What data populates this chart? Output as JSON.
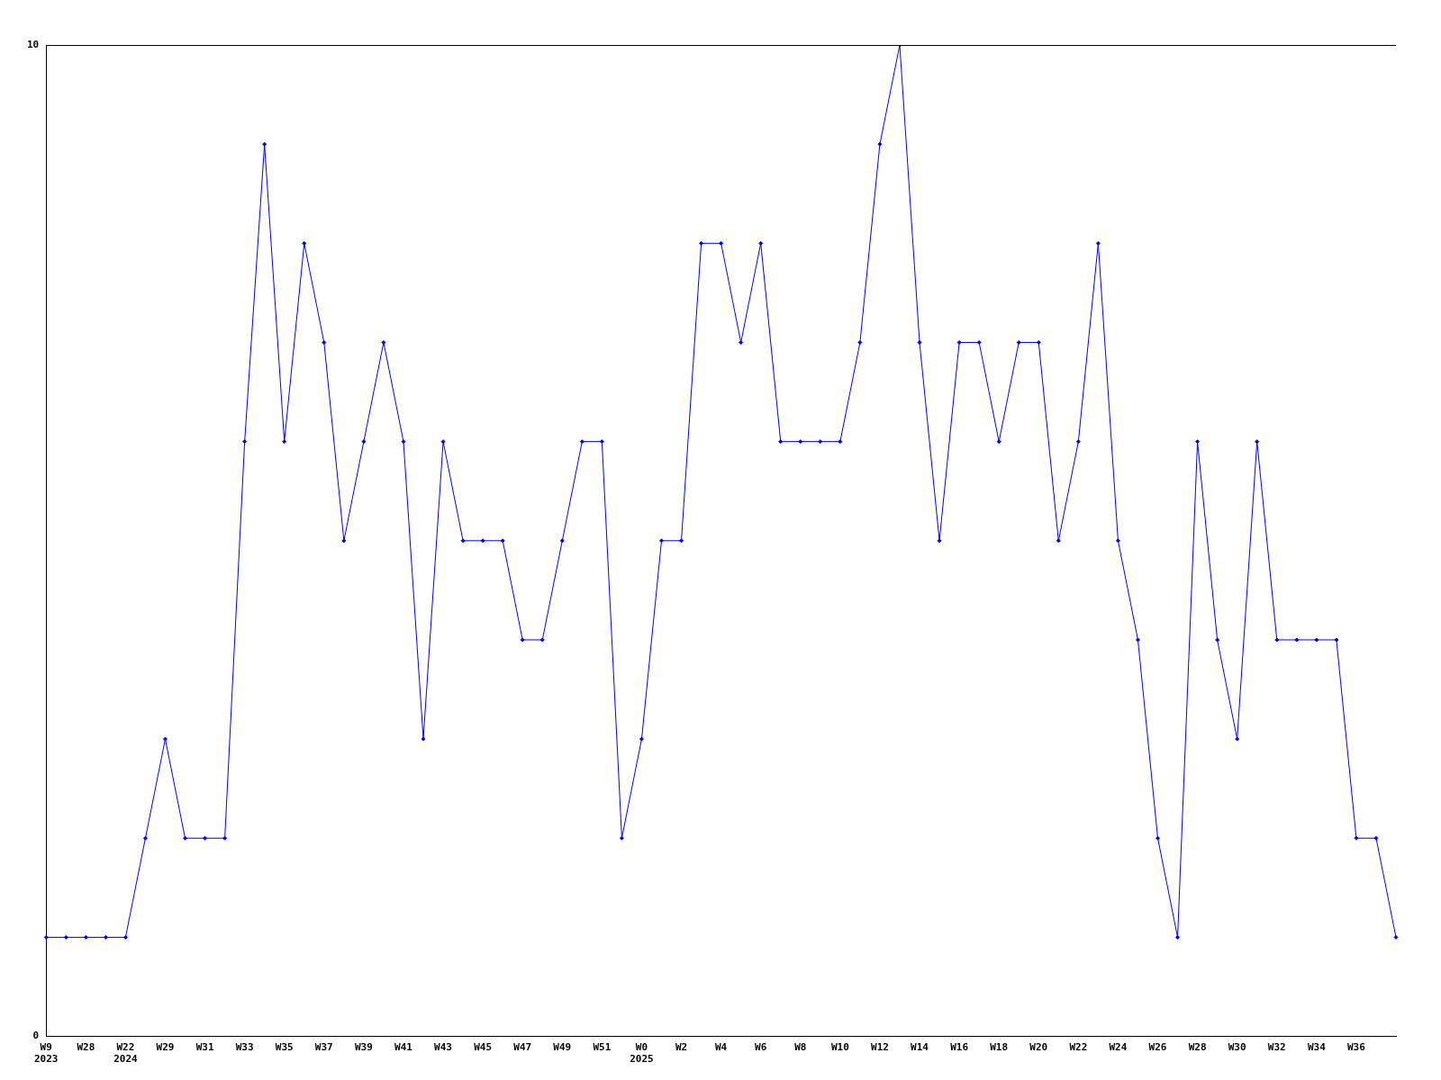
{
  "chart_data": {
    "type": "line",
    "categories": [
      "W9\n2023",
      null,
      "W28",
      null,
      "W22\n2024",
      null,
      "W29",
      null,
      "W31",
      null,
      "W33",
      null,
      "W35",
      null,
      "W37",
      null,
      "W39",
      null,
      "W41",
      null,
      "W43",
      null,
      "W45",
      null,
      "W47",
      null,
      "W49",
      null,
      "W51",
      null,
      "W0\n2025",
      null,
      "W2",
      null,
      "W4",
      null,
      "W6",
      null,
      "W8",
      null,
      "W10",
      null,
      "W12",
      null,
      "W14",
      null,
      "W16",
      null,
      "W18",
      null,
      "W20",
      null,
      "W22",
      null,
      "W24",
      null,
      "W26",
      null,
      "W28",
      null,
      "W30",
      null,
      "W32",
      null,
      "W34",
      null,
      "W36",
      null,
      null
    ],
    "series": [
      {
        "color": "#0000ff",
        "values": [
          1,
          1,
          1,
          1,
          1,
          2,
          3,
          2,
          2,
          2,
          6,
          9,
          6,
          8,
          7,
          5,
          6,
          7,
          6,
          3,
          6,
          5,
          5,
          5,
          4,
          4,
          5,
          6,
          6,
          2,
          3,
          5,
          5,
          8,
          8,
          7,
          8,
          6,
          6,
          6,
          6,
          7,
          9,
          10,
          7,
          5,
          7,
          7,
          6,
          7,
          7,
          5,
          6,
          8,
          5,
          4,
          2,
          1,
          6,
          4,
          3,
          6,
          4,
          4,
          4,
          4,
          2,
          2,
          1
        ]
      }
    ],
    "ylim": [
      0,
      10
    ],
    "yticks": [
      0,
      10
    ],
    "grid": false,
    "legend": false,
    "marker": "diamond",
    "line_style": "solid"
  }
}
